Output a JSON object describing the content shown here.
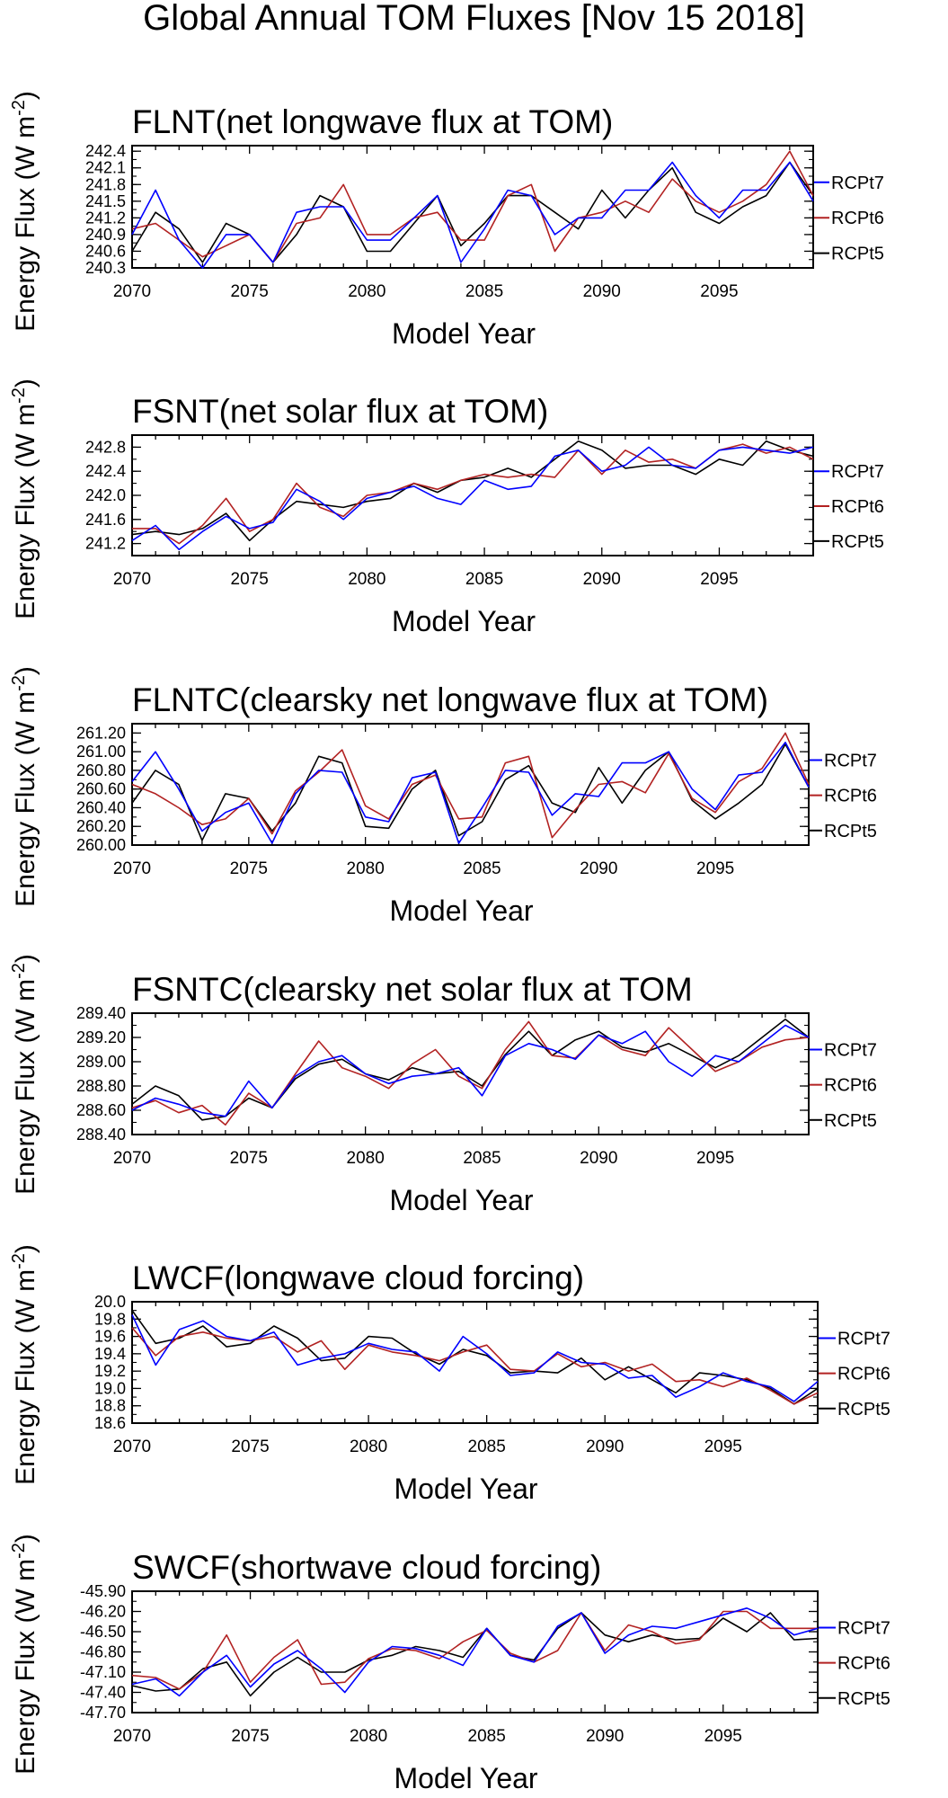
{
  "page_title": "Global Annual TOM Fluxes [Nov 15 2018]",
  "colors": {
    "RCPt7": "#0000ff",
    "RCPt6": "#b22222",
    "RCPt5": "#000000",
    "axis": "#000000"
  },
  "chart_data": [
    {
      "type": "line",
      "title": "FLNT(net longwave flux at TOM)",
      "xlabel": "Model Year",
      "ylabel": "Energy Flux (W m-2)",
      "xlim": [
        2070,
        2099
      ],
      "ylim": [
        240.3,
        242.5
      ],
      "xticks": [
        2070,
        2075,
        2080,
        2085,
        2090,
        2095
      ],
      "yticks": [
        "242.4",
        "242.1",
        "241.8",
        "241.5",
        "241.2",
        "240.9",
        "240.6",
        "240.3"
      ],
      "legend_position": "right",
      "x": [
        2070,
        2071,
        2072,
        2073,
        2074,
        2075,
        2076,
        2077,
        2078,
        2079,
        2080,
        2081,
        2082,
        2083,
        2084,
        2085,
        2086,
        2087,
        2088,
        2089,
        2090,
        2091,
        2092,
        2093,
        2094,
        2095,
        2096,
        2097,
        2098,
        2099
      ],
      "series": [
        {
          "name": "RCPt7",
          "values": [
            240.9,
            241.7,
            240.8,
            240.3,
            240.9,
            240.9,
            240.4,
            241.3,
            241.4,
            241.4,
            240.8,
            240.8,
            241.2,
            241.6,
            240.4,
            241.0,
            241.7,
            241.6,
            240.9,
            241.2,
            241.2,
            241.7,
            241.7,
            242.2,
            241.6,
            241.2,
            241.7,
            241.7,
            242.2,
            241.5
          ]
        },
        {
          "name": "RCPt6",
          "values": [
            241.0,
            241.1,
            240.8,
            240.5,
            240.7,
            240.9,
            240.4,
            241.1,
            241.2,
            241.8,
            240.9,
            240.9,
            241.2,
            241.3,
            240.8,
            240.8,
            241.6,
            241.8,
            240.6,
            241.2,
            241.3,
            241.5,
            241.3,
            241.9,
            241.5,
            241.3,
            241.5,
            241.8,
            242.4,
            241.6
          ]
        },
        {
          "name": "RCPt5",
          "values": [
            240.6,
            241.3,
            241.0,
            240.4,
            241.1,
            240.9,
            240.4,
            240.9,
            241.6,
            241.4,
            240.6,
            240.6,
            241.1,
            241.6,
            240.7,
            241.1,
            241.6,
            241.6,
            241.3,
            241.0,
            241.7,
            241.2,
            241.7,
            242.1,
            241.3,
            241.1,
            241.4,
            241.6,
            242.2,
            241.6
          ]
        }
      ]
    },
    {
      "type": "line",
      "title": "FSNT(net solar flux at TOM)",
      "xlabel": "Model Year",
      "ylabel": "Energy Flux (W m-2)",
      "xlim": [
        2070,
        2099
      ],
      "ylim": [
        241.0,
        243.0
      ],
      "xticks": [
        2070,
        2075,
        2080,
        2085,
        2090,
        2095
      ],
      "yticks": [
        "242.8",
        "242.4",
        "242.0",
        "241.6",
        "241.2"
      ],
      "legend_position": "right",
      "x": [
        2070,
        2071,
        2072,
        2073,
        2074,
        2075,
        2076,
        2077,
        2078,
        2079,
        2080,
        2081,
        2082,
        2083,
        2084,
        2085,
        2086,
        2087,
        2088,
        2089,
        2090,
        2091,
        2092,
        2093,
        2094,
        2095,
        2096,
        2097,
        2098,
        2099
      ],
      "series": [
        {
          "name": "RCPt7",
          "values": [
            241.25,
            241.5,
            241.1,
            241.4,
            241.65,
            241.45,
            241.55,
            242.1,
            241.9,
            241.6,
            241.95,
            242.05,
            242.15,
            241.95,
            241.85,
            242.25,
            242.1,
            242.15,
            242.65,
            242.75,
            242.4,
            242.5,
            242.8,
            242.5,
            242.45,
            242.75,
            242.8,
            242.75,
            242.7,
            242.8
          ]
        },
        {
          "name": "RCPt6",
          "values": [
            241.45,
            241.45,
            241.2,
            241.5,
            241.95,
            241.4,
            241.6,
            242.2,
            241.8,
            241.65,
            242.0,
            242.05,
            242.2,
            242.1,
            242.25,
            242.35,
            242.3,
            242.35,
            242.3,
            242.75,
            242.35,
            242.75,
            242.55,
            242.6,
            242.45,
            242.75,
            242.85,
            242.7,
            242.8,
            242.6
          ]
        },
        {
          "name": "RCPt5",
          "values": [
            241.35,
            241.4,
            241.35,
            241.45,
            241.7,
            241.25,
            241.6,
            241.9,
            241.85,
            241.8,
            241.9,
            241.95,
            242.2,
            242.05,
            242.25,
            242.3,
            242.45,
            242.3,
            242.6,
            242.9,
            242.75,
            242.45,
            242.5,
            242.5,
            242.35,
            242.6,
            242.5,
            242.9,
            242.75,
            242.65
          ]
        }
      ]
    },
    {
      "type": "line",
      "title": "FLNTC(clearsky net longwave flux at TOM)",
      "xlabel": "Model Year",
      "ylabel": "Energy Flux (W m-2)",
      "xlim": [
        2070,
        2099
      ],
      "ylim": [
        260.0,
        261.3
      ],
      "xticks": [
        2070,
        2075,
        2080,
        2085,
        2090,
        2095
      ],
      "yticks": [
        "261.20",
        "261.00",
        "260.80",
        "260.60",
        "260.40",
        "260.20",
        "260.00"
      ],
      "legend_position": "right",
      "x": [
        2070,
        2071,
        2072,
        2073,
        2074,
        2075,
        2076,
        2077,
        2078,
        2079,
        2080,
        2081,
        2082,
        2083,
        2084,
        2085,
        2086,
        2087,
        2088,
        2089,
        2090,
        2091,
        2092,
        2093,
        2094,
        2095,
        2096,
        2097,
        2098,
        2099
      ],
      "series": [
        {
          "name": "RCPt7",
          "values": [
            260.68,
            261.0,
            260.6,
            260.15,
            260.35,
            260.45,
            260.02,
            260.55,
            260.8,
            260.78,
            260.3,
            260.25,
            260.72,
            260.78,
            260.02,
            260.4,
            260.8,
            260.78,
            260.32,
            260.55,
            260.52,
            260.88,
            260.88,
            261.0,
            260.6,
            260.38,
            260.75,
            260.78,
            261.1,
            260.62
          ]
        },
        {
          "name": "RCPt6",
          "values": [
            260.65,
            260.55,
            260.4,
            260.22,
            260.28,
            260.5,
            260.12,
            260.58,
            260.78,
            261.02,
            260.42,
            260.28,
            260.65,
            260.75,
            260.28,
            260.3,
            260.88,
            260.95,
            260.08,
            260.38,
            260.65,
            260.68,
            260.56,
            260.98,
            260.5,
            260.35,
            260.68,
            260.82,
            261.2,
            260.65
          ]
        },
        {
          "name": "RCPt5",
          "values": [
            260.45,
            260.8,
            260.65,
            260.05,
            260.55,
            260.5,
            260.15,
            260.45,
            260.95,
            260.88,
            260.2,
            260.18,
            260.6,
            260.8,
            260.1,
            260.25,
            260.7,
            260.85,
            260.45,
            260.35,
            260.83,
            260.45,
            260.8,
            261.0,
            260.48,
            260.28,
            260.45,
            260.65,
            261.08,
            260.62
          ]
        }
      ]
    },
    {
      "type": "line",
      "title": "FSNTC(clearsky net solar flux at TOM",
      "xlabel": "Model Year",
      "ylabel": "Energy Flux (W m-2)",
      "xlim": [
        2070,
        2099
      ],
      "ylim": [
        288.4,
        289.4
      ],
      "xticks": [
        2070,
        2075,
        2080,
        2085,
        2090,
        2095
      ],
      "yticks": [
        "289.40",
        "289.20",
        "289.00",
        "288.80",
        "288.60",
        "288.40"
      ],
      "legend_position": "right",
      "x": [
        2070,
        2071,
        2072,
        2073,
        2074,
        2075,
        2076,
        2077,
        2078,
        2079,
        2080,
        2081,
        2082,
        2083,
        2084,
        2085,
        2086,
        2087,
        2088,
        2089,
        2090,
        2091,
        2092,
        2093,
        2094,
        2095,
        2096,
        2097,
        2098,
        2099
      ],
      "series": [
        {
          "name": "RCPt7",
          "values": [
            288.6,
            288.7,
            288.65,
            288.58,
            288.55,
            288.84,
            288.62,
            288.88,
            289.0,
            289.05,
            288.9,
            288.82,
            288.88,
            288.9,
            288.95,
            288.72,
            289.05,
            289.15,
            289.1,
            289.02,
            289.22,
            289.15,
            289.25,
            289.0,
            288.88,
            289.05,
            289.0,
            289.15,
            289.3,
            289.2
          ]
        },
        {
          "name": "RCPt6",
          "values": [
            288.62,
            288.68,
            288.58,
            288.64,
            288.48,
            288.74,
            288.62,
            288.9,
            289.17,
            288.95,
            288.88,
            288.78,
            288.98,
            289.1,
            288.88,
            288.78,
            289.1,
            289.33,
            289.05,
            289.03,
            289.22,
            289.1,
            289.05,
            289.28,
            289.1,
            288.92,
            289.0,
            289.12,
            289.18,
            289.2
          ]
        },
        {
          "name": "RCPt5",
          "values": [
            288.65,
            288.8,
            288.72,
            288.52,
            288.55,
            288.7,
            288.62,
            288.86,
            288.98,
            289.02,
            288.9,
            288.85,
            288.95,
            288.9,
            288.92,
            288.8,
            289.06,
            289.25,
            289.05,
            289.18,
            289.25,
            289.12,
            289.08,
            289.15,
            289.05,
            288.95,
            289.05,
            289.2,
            289.35,
            289.2
          ]
        }
      ]
    },
    {
      "type": "line",
      "title": "LWCF(longwave cloud forcing)",
      "xlabel": "Model Year",
      "ylabel": "Energy Flux (W m-2)",
      "xlim": [
        2070,
        2099
      ],
      "ylim": [
        18.6,
        20.0
      ],
      "xticks": [
        2070,
        2075,
        2080,
        2085,
        2090,
        2095
      ],
      "yticks": [
        "20.0",
        "19.8",
        "19.6",
        "19.4",
        "19.2",
        "19.0",
        "18.8",
        "18.6"
      ],
      "legend_position": "right",
      "x": [
        2070,
        2071,
        2072,
        2073,
        2074,
        2075,
        2076,
        2077,
        2078,
        2079,
        2080,
        2081,
        2082,
        2083,
        2084,
        2085,
        2086,
        2087,
        2088,
        2089,
        2090,
        2091,
        2092,
        2093,
        2094,
        2095,
        2096,
        2097,
        2098,
        2099
      ],
      "series": [
        {
          "name": "RCPt7",
          "values": [
            19.85,
            19.27,
            19.68,
            19.78,
            19.6,
            19.55,
            19.65,
            19.27,
            19.35,
            19.4,
            19.52,
            19.45,
            19.42,
            19.2,
            19.6,
            19.4,
            19.15,
            19.18,
            19.42,
            19.3,
            19.28,
            19.12,
            19.15,
            18.9,
            19.02,
            19.18,
            19.08,
            19.02,
            18.85,
            19.08
          ]
        },
        {
          "name": "RCPt6",
          "values": [
            19.7,
            19.38,
            19.6,
            19.65,
            19.58,
            19.55,
            19.6,
            19.42,
            19.55,
            19.22,
            19.5,
            19.42,
            19.38,
            19.32,
            19.42,
            19.5,
            19.22,
            19.2,
            19.4,
            19.25,
            19.3,
            19.2,
            19.28,
            19.08,
            19.1,
            19.02,
            19.12,
            18.98,
            18.82,
            18.95
          ]
        },
        {
          "name": "RCPt5",
          "values": [
            19.9,
            19.52,
            19.58,
            19.72,
            19.48,
            19.52,
            19.72,
            19.58,
            19.32,
            19.35,
            19.6,
            19.58,
            19.4,
            19.28,
            19.45,
            19.38,
            19.18,
            19.2,
            19.18,
            19.35,
            19.1,
            19.25,
            19.1,
            18.95,
            19.18,
            19.15,
            19.1,
            19.0,
            18.82,
            19.0
          ]
        }
      ]
    },
    {
      "type": "line",
      "title": "SWCF(shortwave cloud forcing)",
      "xlabel": "Model Year",
      "ylabel": "Energy Flux (W m-2)",
      "xlim": [
        2070,
        2099
      ],
      "ylim": [
        -47.7,
        -45.9
      ],
      "xticks": [
        2070,
        2075,
        2080,
        2085,
        2090,
        2095
      ],
      "yticks": [
        "-45.90",
        "-46.20",
        "-46.50",
        "-46.80",
        "-47.10",
        "-47.40",
        "-47.70"
      ],
      "legend_position": "right",
      "x": [
        2070,
        2071,
        2072,
        2073,
        2074,
        2075,
        2076,
        2077,
        2078,
        2079,
        2080,
        2081,
        2082,
        2083,
        2084,
        2085,
        2086,
        2087,
        2088,
        2089,
        2090,
        2091,
        2092,
        2093,
        2094,
        2095,
        2096,
        2097,
        2098,
        2099
      ],
      "series": [
        {
          "name": "RCPt7",
          "values": [
            -47.28,
            -47.2,
            -47.45,
            -47.1,
            -46.85,
            -47.32,
            -46.98,
            -46.78,
            -47.05,
            -47.4,
            -46.95,
            -46.72,
            -46.75,
            -46.85,
            -47.0,
            -46.45,
            -46.85,
            -46.95,
            -46.42,
            -46.22,
            -46.82,
            -46.55,
            -46.42,
            -46.45,
            -46.35,
            -46.25,
            -46.15,
            -46.3,
            -46.55,
            -46.45
          ]
        },
        {
          "name": "RCPt6",
          "values": [
            -47.15,
            -47.18,
            -47.35,
            -47.1,
            -46.55,
            -47.25,
            -46.88,
            -46.62,
            -47.28,
            -47.25,
            -46.9,
            -46.75,
            -46.78,
            -46.9,
            -46.65,
            -46.48,
            -46.82,
            -46.95,
            -46.78,
            -46.22,
            -46.78,
            -46.4,
            -46.5,
            -46.68,
            -46.62,
            -46.2,
            -46.2,
            -46.45,
            -46.45,
            -46.45
          ]
        },
        {
          "name": "RCPt5",
          "values": [
            -47.3,
            -47.38,
            -47.35,
            -47.05,
            -46.95,
            -47.45,
            -47.1,
            -46.88,
            -47.1,
            -47.1,
            -46.92,
            -46.85,
            -46.72,
            -46.78,
            -46.88,
            -46.45,
            -46.85,
            -46.92,
            -46.45,
            -46.22,
            -46.55,
            -46.65,
            -46.55,
            -46.62,
            -46.6,
            -46.3,
            -46.5,
            -46.22,
            -46.62,
            -46.6
          ]
        }
      ]
    }
  ]
}
